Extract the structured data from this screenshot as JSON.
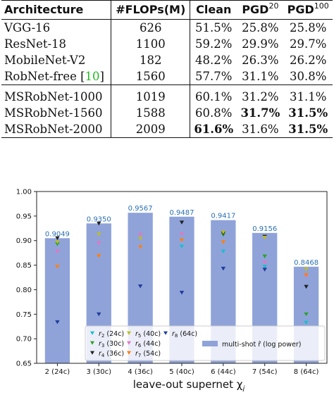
{
  "table": {
    "headers": [
      "Architecture",
      "#FLOPs(M)",
      "Clean",
      "PGD",
      "PGD"
    ],
    "header_sups": [
      "",
      "",
      "",
      "20",
      "100"
    ],
    "group1": [
      {
        "arch": "VGG-16",
        "flops": "626",
        "clean": "51.5%",
        "pgd20": "25.8%",
        "pgd100": "25.8%"
      },
      {
        "arch": "ResNet-18",
        "flops": "1100",
        "clean": "59.2%",
        "pgd20": "29.9%",
        "pgd100": "29.7%"
      },
      {
        "arch": "MobileNet-V2",
        "flops": "182",
        "clean": "48.2%",
        "pgd20": "26.3%",
        "pgd100": "26.2%"
      },
      {
        "arch": "RobNet-free",
        "cite": "10",
        "flops": "1560",
        "clean": "57.7%",
        "pgd20": "31.1%",
        "pgd100": "30.8%"
      }
    ],
    "group2": [
      {
        "arch": "MSRobNet-1000",
        "flops": "1019",
        "clean": "60.1%",
        "pgd20": "31.2%",
        "pgd100": "31.1%"
      },
      {
        "arch": "MSRobNet-1560",
        "flops": "1588",
        "clean": "60.8%",
        "pgd20": "31.7%",
        "pgd100": "31.5%",
        "bold": [
          "pgd20",
          "pgd100"
        ]
      },
      {
        "arch": "MSRobNet-2000",
        "flops": "2009",
        "clean": "61.6%",
        "pgd20": "31.6%",
        "pgd100": "31.5%",
        "bold": [
          "clean",
          "pgd100"
        ]
      }
    ]
  },
  "chart_data": {
    "type": "bar",
    "xlabel": "leave-out supernet χ",
    "xlabel_sub": "j",
    "ylim": [
      0.65,
      1.0
    ],
    "yticks": [
      "0.65",
      "0.70",
      "0.75",
      "0.80",
      "0.85",
      "0.90",
      "0.95",
      "1.00"
    ],
    "categories": [
      "2 (24c)",
      "3 (30c)",
      "4 (36c)",
      "5 (40c)",
      "6 (44c)",
      "7 (54c)",
      "8 (64c)"
    ],
    "bars": {
      "name": "multi-shot r̂ (log power)",
      "values": [
        0.9049,
        0.935,
        0.9567,
        0.9487,
        0.9417,
        0.9156,
        0.8468
      ],
      "labels": [
        "0.9049",
        "0.9350",
        "0.9567",
        "0.9487",
        "0.9417",
        "0.9156",
        "0.8468"
      ],
      "color": "#8fa3d9",
      "label_color": "#2a6fb5"
    },
    "series": [
      {
        "name": "r2 (24c)",
        "sym": "r",
        "sub": "2",
        "extra": " (24c)",
        "color": "#17becf",
        "values": [
          null,
          null,
          null,
          0.888,
          0.878,
          0.847,
          0.733
        ]
      },
      {
        "name": "r3 (30c)",
        "sym": "r",
        "sub": "3",
        "extra": " (30c)",
        "color": "#2ca02c",
        "values": [
          0.893,
          null,
          null,
          null,
          0.912,
          0.868,
          0.75
        ]
      },
      {
        "name": "r4 (36c)",
        "sym": "r",
        "sub": "4",
        "extra": " (36c)",
        "color": "#222222",
        "values": [
          0.905,
          0.935,
          null,
          0.937,
          0.915,
          0.908,
          0.806
        ]
      },
      {
        "name": "r5 (40c)",
        "sym": "r",
        "sub": "5",
        "extra": " (40c)",
        "color": "#bcbd22",
        "values": [
          0.897,
          0.913,
          0.904,
          null,
          0.917,
          0.906,
          0.842
        ]
      },
      {
        "name": "r6 (44c)",
        "sym": "r",
        "sub": "6",
        "extra": " (44c)",
        "color": "#e377c2",
        "values": [
          0.878,
          0.895,
          0.912,
          0.913,
          null,
          0.855,
          0.828
        ]
      },
      {
        "name": "r7 (54c)",
        "sym": "r",
        "sub": "7",
        "extra": " (54c)",
        "color": "#ff7f0e",
        "values": [
          0.847,
          0.869,
          0.887,
          0.901,
          0.897,
          null,
          0.83
        ]
      },
      {
        "name": "r8 (64c)",
        "sym": "r",
        "sub": "8",
        "extra": " (64c)",
        "color": "#1f3d99",
        "values": [
          0.734,
          0.75,
          0.807,
          0.794,
          0.843,
          0.841,
          null
        ]
      }
    ],
    "legend": {
      "placement": "bottom"
    }
  }
}
